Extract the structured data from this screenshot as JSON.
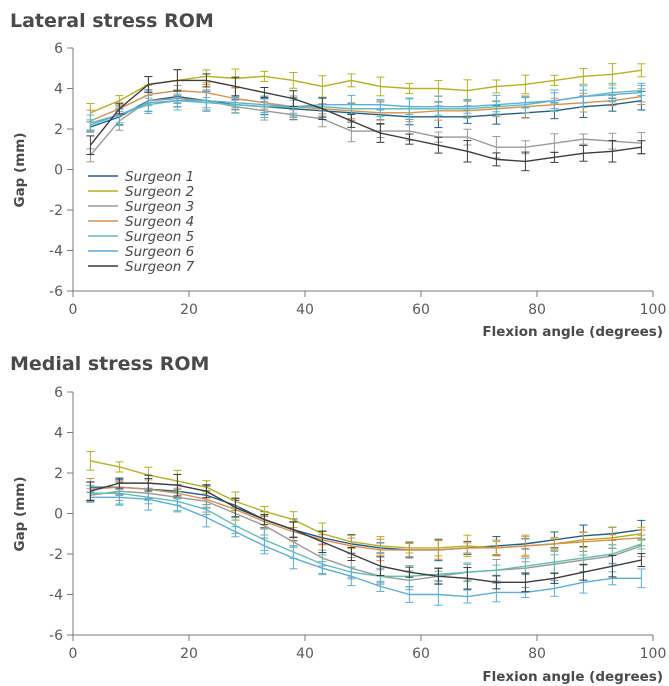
{
  "chart_data": [
    {
      "type": "line",
      "title": "Lateral stress ROM",
      "xlabel": "Flexion angle (degrees)",
      "ylabel": "Gap (mm)",
      "xlim": [
        0,
        100
      ],
      "ylim": [
        -6,
        6
      ],
      "xticks": [
        0,
        20,
        40,
        60,
        80,
        100
      ],
      "yticks": [
        6,
        4,
        2,
        0,
        -2,
        -4,
        -6
      ],
      "error_bars": true,
      "legend": "left",
      "x": [
        3,
        8,
        13,
        18,
        23,
        28,
        33,
        38,
        43,
        48,
        53,
        58,
        63,
        68,
        73,
        78,
        83,
        88,
        93,
        98
      ],
      "series": [
        {
          "name": "Surgeon 1",
          "color": "#1f5f8b",
          "values": [
            2.1,
            2.6,
            3.4,
            3.6,
            3.4,
            3.2,
            3.1,
            3.0,
            2.9,
            2.8,
            2.7,
            2.6,
            2.6,
            2.6,
            2.7,
            2.8,
            2.9,
            3.1,
            3.2,
            3.4
          ]
        },
        {
          "name": "Surgeon 2",
          "color": "#b5b21e",
          "values": [
            2.8,
            3.4,
            4.2,
            4.4,
            4.6,
            4.5,
            4.6,
            4.4,
            4.1,
            4.4,
            4.1,
            4.0,
            4.0,
            3.9,
            4.1,
            4.2,
            4.4,
            4.6,
            4.7,
            4.9
          ]
        },
        {
          "name": "Surgeon 3",
          "color": "#9a9a9a",
          "values": [
            0.7,
            2.4,
            3.4,
            3.5,
            3.4,
            3.1,
            2.9,
            2.7,
            2.5,
            1.9,
            1.9,
            1.9,
            1.6,
            1.6,
            1.1,
            1.1,
            1.3,
            1.5,
            1.4,
            1.3
          ]
        },
        {
          "name": "Surgeon 4",
          "color": "#d98f4e",
          "values": [
            2.4,
            3.0,
            3.7,
            3.9,
            3.8,
            3.5,
            3.3,
            3.1,
            3.0,
            2.9,
            2.8,
            2.8,
            2.9,
            2.9,
            3.0,
            3.1,
            3.2,
            3.3,
            3.4,
            3.6
          ]
        },
        {
          "name": "Surgeon 5",
          "color": "#5fbfb3",
          "values": [
            2.3,
            2.7,
            3.2,
            3.4,
            3.3,
            3.2,
            3.1,
            3.1,
            3.1,
            3.0,
            3.0,
            3.0,
            3.0,
            3.0,
            3.1,
            3.2,
            3.4,
            3.6,
            3.8,
            3.9
          ]
        },
        {
          "name": "Surgeon 6",
          "color": "#5aaee0",
          "values": [
            2.2,
            2.7,
            3.3,
            3.4,
            3.4,
            3.3,
            3.2,
            3.1,
            3.2,
            3.2,
            3.2,
            3.1,
            3.1,
            3.1,
            3.2,
            3.3,
            3.4,
            3.6,
            3.7,
            3.8
          ]
        },
        {
          "name": "Surgeon 7",
          "color": "#3c3c3c",
          "values": [
            1.2,
            3.0,
            4.2,
            4.4,
            4.4,
            4.1,
            3.8,
            3.5,
            3.0,
            2.4,
            1.8,
            1.5,
            1.2,
            0.9,
            0.5,
            0.4,
            0.6,
            0.8,
            0.9,
            1.1
          ]
        }
      ]
    },
    {
      "type": "line",
      "title": "Medial stress ROM",
      "xlabel": "Flexion angle (degrees)",
      "ylabel": "Gap (mm)",
      "xlim": [
        0,
        100
      ],
      "ylim": [
        -6,
        6
      ],
      "xticks": [
        0,
        20,
        40,
        60,
        80,
        100
      ],
      "yticks": [
        6,
        4,
        2,
        0,
        -2,
        -4,
        -6
      ],
      "error_bars": true,
      "x": [
        3,
        8,
        13,
        18,
        23,
        28,
        33,
        38,
        43,
        48,
        53,
        58,
        63,
        68,
        73,
        78,
        83,
        88,
        93,
        98
      ],
      "series": [
        {
          "name": "Surgeon 1",
          "color": "#1f5f8b",
          "values": [
            1.3,
            1.3,
            1.2,
            1.1,
            0.9,
            0.4,
            -0.3,
            -0.8,
            -1.2,
            -1.5,
            -1.7,
            -1.8,
            -1.8,
            -1.7,
            -1.6,
            -1.5,
            -1.3,
            -1.1,
            -1.0,
            -0.8
          ]
        },
        {
          "name": "Surgeon 2",
          "color": "#b5b21e",
          "values": [
            2.6,
            2.3,
            1.9,
            1.6,
            1.3,
            0.6,
            0.1,
            -0.3,
            -1.0,
            -1.4,
            -1.6,
            -1.7,
            -1.7,
            -1.6,
            -1.7,
            -1.6,
            -1.5,
            -1.3,
            -1.2,
            -1.0
          ]
        },
        {
          "name": "Surgeon 3",
          "color": "#9a9a9a",
          "values": [
            0.9,
            1.1,
            1.0,
            0.8,
            0.6,
            0.0,
            -0.6,
            -1.4,
            -2.2,
            -2.7,
            -3.1,
            -3.3,
            -3.1,
            -2.9,
            -2.8,
            -2.7,
            -2.5,
            -2.3,
            -2.1,
            -1.6
          ]
        },
        {
          "name": "Surgeon 4",
          "color": "#d98f4e",
          "values": [
            1.2,
            1.3,
            1.2,
            1.0,
            0.7,
            0.2,
            -0.4,
            -0.9,
            -1.3,
            -1.6,
            -1.8,
            -1.8,
            -1.8,
            -1.7,
            -1.7,
            -1.6,
            -1.5,
            -1.4,
            -1.3,
            -1.2
          ]
        },
        {
          "name": "Surgeon 5",
          "color": "#5fbfb3",
          "values": [
            1.0,
            1.0,
            0.8,
            0.6,
            0.2,
            -0.6,
            -1.3,
            -1.9,
            -2.5,
            -2.9,
            -3.1,
            -3.1,
            -3.0,
            -2.9,
            -2.8,
            -2.6,
            -2.4,
            -2.2,
            -2.0,
            -1.5
          ]
        },
        {
          "name": "Surgeon 6",
          "color": "#5aaee0",
          "values": [
            0.8,
            0.8,
            0.7,
            0.4,
            -0.2,
            -0.9,
            -1.6,
            -2.2,
            -2.7,
            -3.1,
            -3.6,
            -4.0,
            -4.0,
            -4.1,
            -3.9,
            -3.9,
            -3.7,
            -3.4,
            -3.2,
            -3.2
          ]
        },
        {
          "name": "Surgeon 7",
          "color": "#3c3c3c",
          "values": [
            1.1,
            1.5,
            1.5,
            1.4,
            1.1,
            0.3,
            -0.3,
            -0.8,
            -1.4,
            -2.0,
            -2.6,
            -2.9,
            -3.1,
            -3.2,
            -3.4,
            -3.4,
            -3.2,
            -2.9,
            -2.6,
            -2.3
          ]
        }
      ]
    }
  ]
}
